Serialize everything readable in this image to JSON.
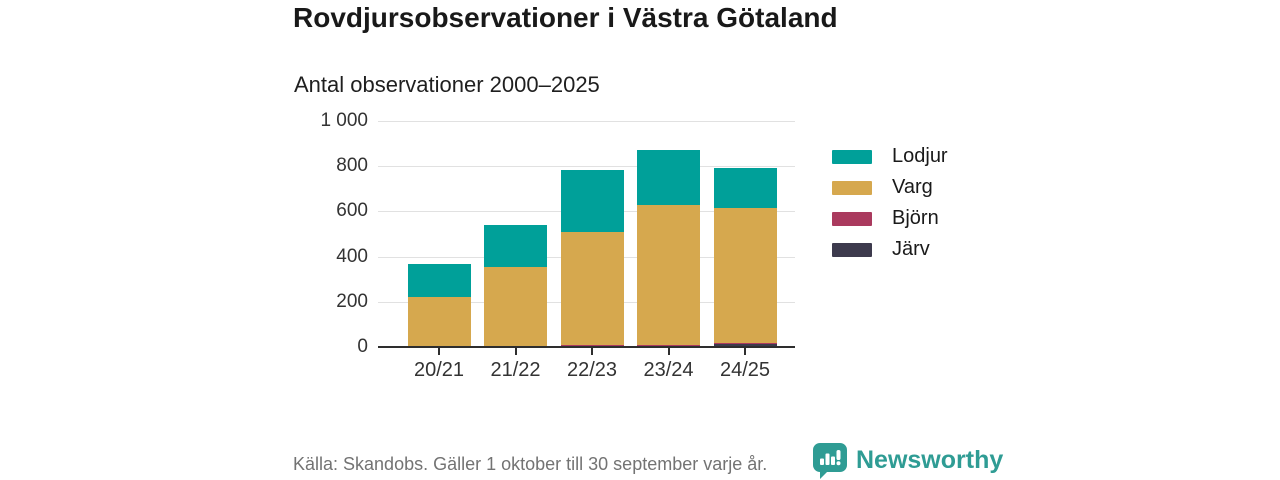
{
  "header": {
    "title": "Rovdjursobservationer i Västra Götaland",
    "subtitle": "Antal observationer 2000–2025"
  },
  "chart_data": {
    "type": "bar",
    "stacked": true,
    "title": "Rovdjursobservationer i Västra Götaland",
    "subtitle": "Antal observationer 2000–2025",
    "categories": [
      "20/21",
      "21/22",
      "22/23",
      "23/24",
      "24/25"
    ],
    "series": [
      {
        "name": "Lodjur",
        "color": "#00a099",
        "values": [
          145,
          185,
          275,
          240,
          175
        ]
      },
      {
        "name": "Varg",
        "color": "#d6a84e",
        "values": [
          218,
          352,
          499,
          619,
          598
        ]
      },
      {
        "name": "Björn",
        "color": "#aa3a5e",
        "values": [
          2,
          2,
          8,
          6,
          5
        ]
      },
      {
        "name": "Järv",
        "color": "#3d3a4d",
        "values": [
          1,
          2,
          3,
          5,
          12
        ]
      }
    ],
    "stack_order_bottom_to_top": [
      "Järv",
      "Björn",
      "Varg",
      "Lodjur"
    ],
    "totals": [
      366,
      541,
      785,
      870,
      790
    ],
    "ylim": [
      0,
      1000
    ],
    "y_tick_values": [
      0,
      200,
      400,
      600,
      800,
      1000
    ],
    "y_tick_labels": [
      "0",
      "200",
      "400",
      "600",
      "800",
      "1 000"
    ],
    "xlabel": "",
    "ylabel": "",
    "grid": true,
    "legend_position": "right"
  },
  "footer": {
    "source": "Källa: Skandobs. Gäller 1 oktober till 30 september varje år.",
    "brand": "Newsworthy"
  },
  "colors": {
    "accent_teal": "#00a099",
    "brand_teal": "#2f9c94",
    "axis": "#2e2e2e",
    "grid": "#e1e1e1",
    "text_dark": "#191919",
    "text_muted": "#737373"
  }
}
